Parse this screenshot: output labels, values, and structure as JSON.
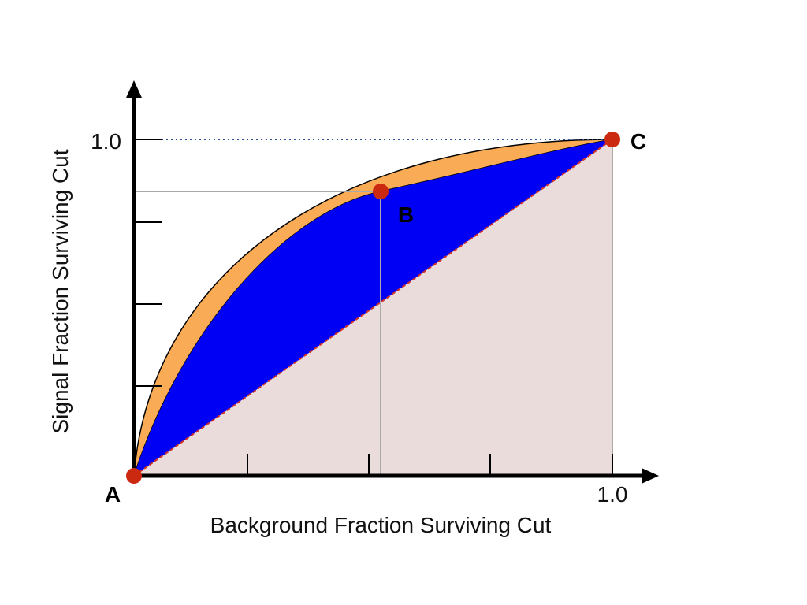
{
  "x_axis": {
    "label": "Background Fraction Surviving Cut",
    "tick_label": "1.0"
  },
  "y_axis": {
    "label": "Signal Fraction Surviving Cut",
    "tick_label": "1.0"
  },
  "points": [
    {
      "label": "A"
    },
    {
      "label": "B"
    },
    {
      "label": "C"
    }
  ]
}
